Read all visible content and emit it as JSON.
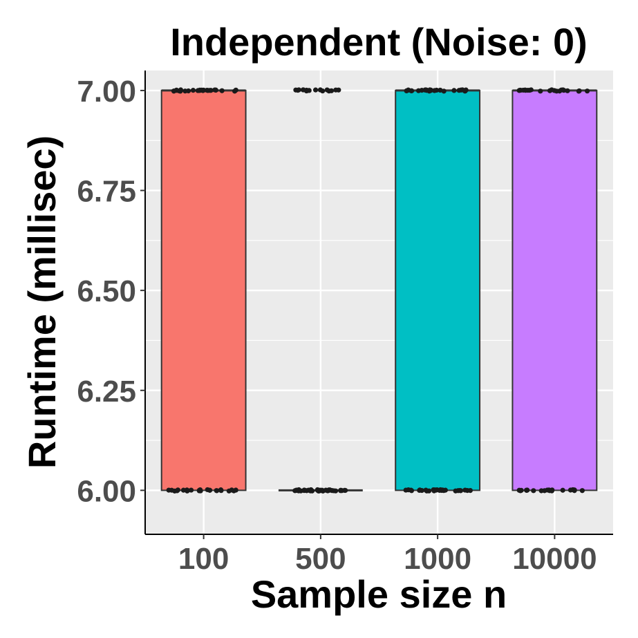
{
  "chart_data": {
    "type": "box",
    "title": "Independent (Noise: 0)",
    "xlabel": "Sample size n",
    "ylabel": "Runtime (millisec)",
    "categories": [
      "100",
      "500",
      "1000",
      "10000"
    ],
    "y_ticks": [
      "6.00",
      "6.25",
      "6.50",
      "6.75",
      "7.00"
    ],
    "ylim": [
      5.89,
      7.05
    ],
    "grid": true,
    "legend": "none",
    "boxes": [
      {
        "category": "100",
        "q1": 6.0,
        "median": 7.0,
        "q3": 7.0,
        "whisker_low": 6.0,
        "whisker_high": 7.0,
        "color": "#F8766D"
      },
      {
        "category": "500",
        "q1": 6.0,
        "median": 6.0,
        "q3": 6.0,
        "whisker_low": 6.0,
        "whisker_high": 6.0,
        "color": "#7CAE00"
      },
      {
        "category": "1000",
        "q1": 6.0,
        "median": 7.0,
        "q3": 7.0,
        "whisker_low": 6.0,
        "whisker_high": 7.0,
        "color": "#00BFC4"
      },
      {
        "category": "10000",
        "q1": 6.0,
        "median": 7.0,
        "q3": 7.0,
        "whisker_low": 6.0,
        "whisker_high": 7.0,
        "color": "#C77CFF"
      }
    ],
    "points": [
      {
        "category": "100",
        "value": 7.0,
        "count": 26
      },
      {
        "category": "100",
        "value": 6.0,
        "count": 26
      },
      {
        "category": "500",
        "value": 7.0,
        "count": 16
      },
      {
        "category": "500",
        "value": 6.0,
        "count": 40
      },
      {
        "category": "1000",
        "value": 7.0,
        "count": 26
      },
      {
        "category": "1000",
        "value": 6.0,
        "count": 28
      },
      {
        "category": "10000",
        "value": 7.0,
        "count": 24
      },
      {
        "category": "10000",
        "value": 6.0,
        "count": 24
      }
    ]
  }
}
